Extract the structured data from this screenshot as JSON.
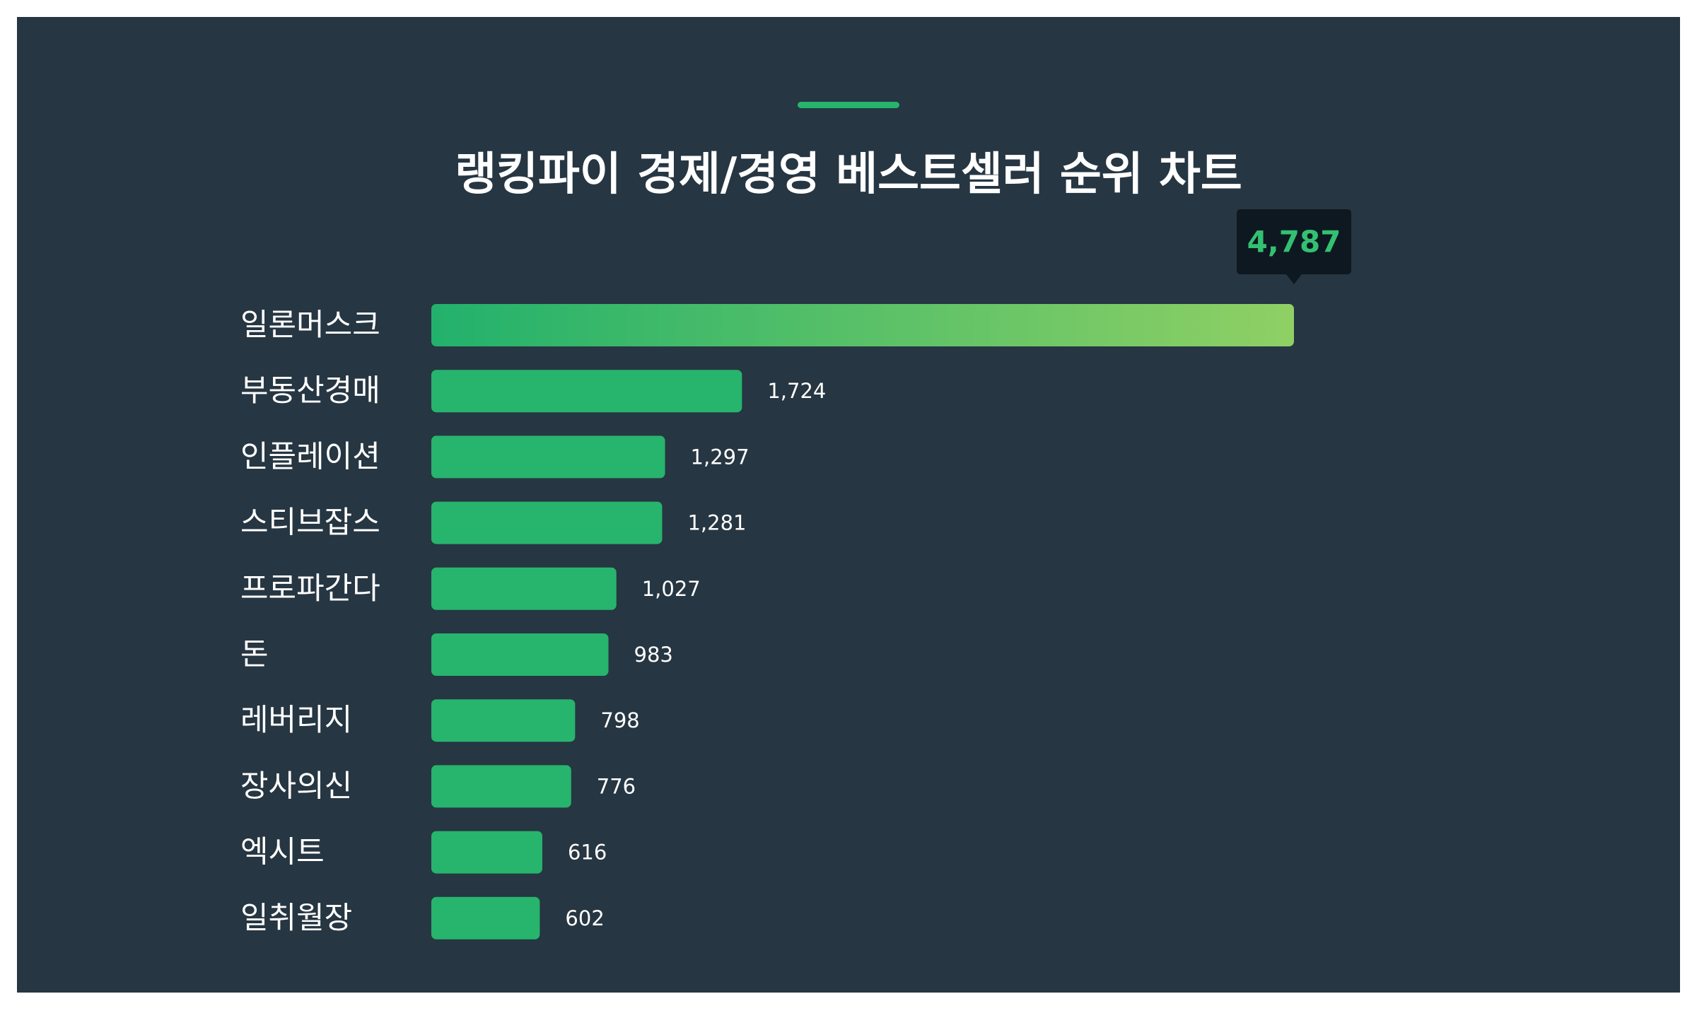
{
  "title": "랭킹파이 경제/경영 베스트셀러 순위 차트",
  "colors": {
    "background": "#263642",
    "accent": "#27b46d",
    "bar": "#27b46d",
    "top_bar_gradient_start": "#22b16c",
    "top_bar_gradient_end": "#8fd064",
    "tooltip_background": "#0d1821",
    "tooltip_text": "#34c071",
    "text": "#ffffff"
  },
  "chart_data": {
    "type": "bar",
    "orientation": "horizontal",
    "categories": [
      "일론머스크",
      "부동산경매",
      "인플레이션",
      "스티브잡스",
      "프로파간다",
      "돈",
      "레버리지",
      "장사의신",
      "엑시트",
      "일취월장"
    ],
    "values": [
      4787,
      1724,
      1297,
      1281,
      1027,
      983,
      798,
      776,
      616,
      602
    ],
    "value_labels": [
      "4,787",
      "1,724",
      "1,297",
      "1,281",
      "1,027",
      "983",
      "798",
      "776",
      "616",
      "602"
    ],
    "highlight_index": 0,
    "xlim": [
      0,
      4787
    ],
    "grid": false,
    "legend": "none"
  }
}
